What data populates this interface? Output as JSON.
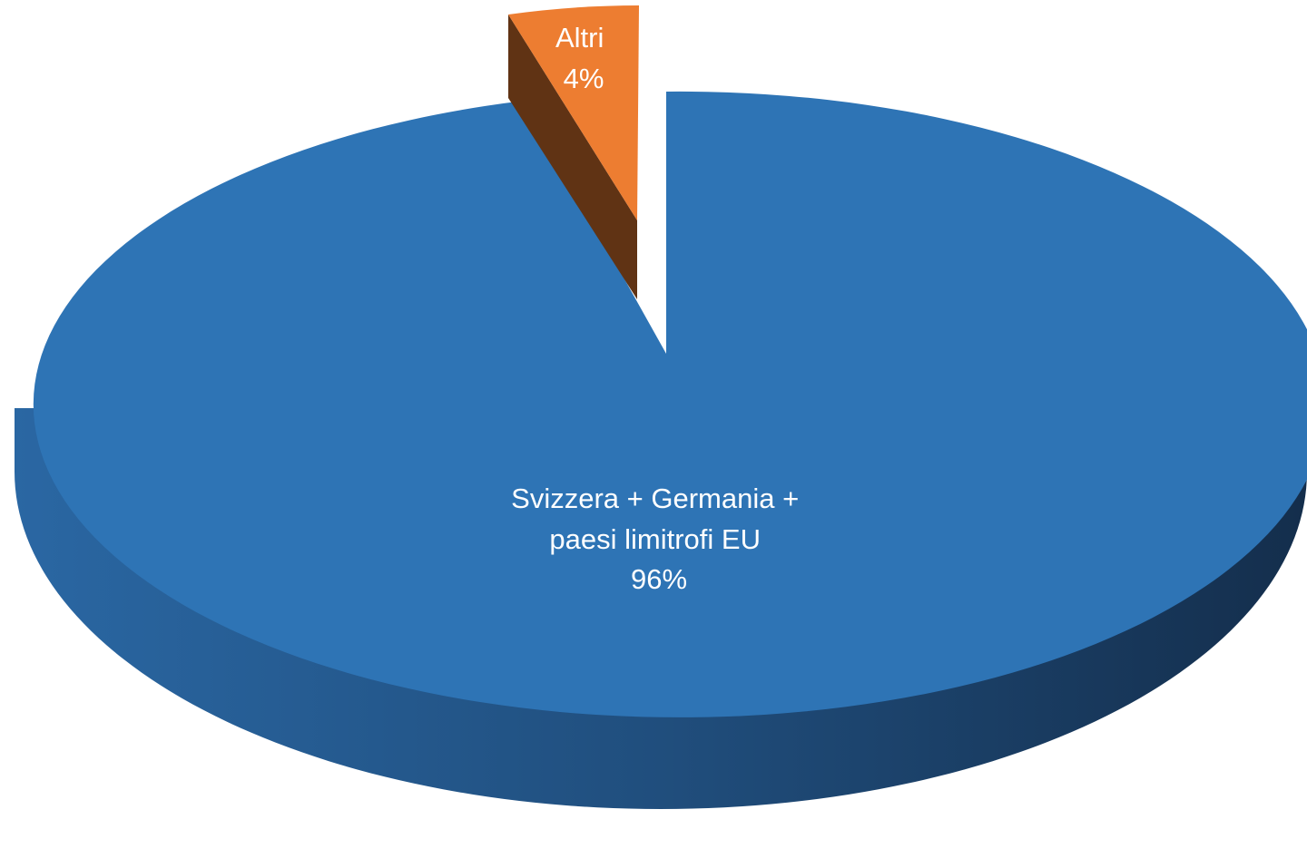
{
  "chart_data": {
    "type": "pie",
    "title": "",
    "style": "3d-exploded",
    "slices": [
      {
        "label_lines": [
          "Svizzera + Germania +",
          "paesi limitrofi EU"
        ],
        "percent_label": "96%",
        "value": 96,
        "color": "#2E74B5",
        "side_color": "#1F4E79"
      },
      {
        "label_lines": [
          "Altri"
        ],
        "percent_label": "4%",
        "value": 4,
        "color": "#ED7D31",
        "side_color": "#843C0C",
        "exploded": true
      }
    ]
  }
}
